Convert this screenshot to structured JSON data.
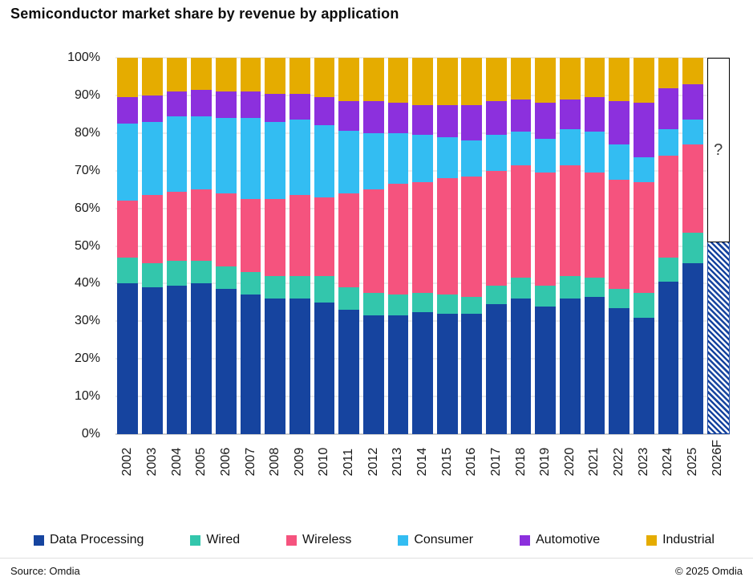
{
  "title": "Semiconductor market share by revenue by application",
  "footer": {
    "source": "Source: Omdia",
    "copyright": "© 2025 Omdia"
  },
  "chart_data": {
    "type": "bar",
    "stacked": true,
    "stack_unit": "percent",
    "title": "Semiconductor market share by revenue by application",
    "grid": "horizontal",
    "legend_position": "bottom",
    "ylim": [
      0,
      100
    ],
    "ytick_labels": [
      "0%",
      "10%",
      "20%",
      "30%",
      "40%",
      "50%",
      "60%",
      "70%",
      "80%",
      "90%",
      "100%"
    ],
    "categories": [
      "2002",
      "2003",
      "2004",
      "2005",
      "2006",
      "2007",
      "2008",
      "2009",
      "2010",
      "2011",
      "2012",
      "2013",
      "2014",
      "2015",
      "2016",
      "2017",
      "2018",
      "2019",
      "2020",
      "2021",
      "2022",
      "2023",
      "2024",
      "2025",
      "2026F"
    ],
    "series": [
      {
        "name": "Data Processing",
        "color": "#16449f",
        "values": [
          40,
          39,
          39.5,
          40,
          38.5,
          37,
          36,
          36,
          35,
          33,
          31.5,
          31.5,
          32.5,
          32,
          32,
          34.5,
          36,
          34,
          36,
          36.5,
          33.5,
          31,
          40.5,
          45.5
        ]
      },
      {
        "name": "Wired",
        "color": "#33c6ac",
        "values": [
          7,
          6.5,
          6.5,
          6,
          6,
          6,
          6,
          6,
          7,
          6,
          6,
          5.5,
          5,
          5,
          4.5,
          5,
          5.5,
          5.5,
          6,
          5,
          5,
          6.5,
          6.5,
          8
        ]
      },
      {
        "name": "Wireless",
        "color": "#f5537e",
        "values": [
          15,
          18,
          18.5,
          19,
          19.5,
          19.5,
          20.5,
          21.5,
          21,
          25,
          27.5,
          29.5,
          29.5,
          31,
          32,
          30.5,
          30,
          30,
          29.5,
          28,
          29,
          29.5,
          27,
          23.5
        ]
      },
      {
        "name": "Consumer",
        "color": "#33bdf2",
        "values": [
          20.5,
          19.5,
          20,
          19.5,
          20,
          21.5,
          20.5,
          20,
          19,
          16.5,
          15,
          13.5,
          12.5,
          11,
          9.5,
          9.5,
          9,
          9,
          9.5,
          11,
          9.5,
          6.5,
          7,
          6.5
        ]
      },
      {
        "name": "Automotive",
        "color": "#8c30dd",
        "values": [
          7,
          7,
          6.5,
          7,
          7,
          7,
          7.5,
          7,
          7.5,
          8,
          8.5,
          8,
          8,
          8.5,
          9.5,
          9,
          8.5,
          9.5,
          8,
          9,
          11.5,
          14.5,
          11,
          9.5
        ]
      },
      {
        "name": "Industrial",
        "color": "#e5ac00",
        "values": [
          10.5,
          10,
          9,
          8.5,
          9,
          9,
          9.5,
          9.5,
          10.5,
          11.5,
          11.5,
          12,
          12.5,
          12.5,
          12.5,
          11.5,
          11,
          12,
          11,
          10.5,
          11.5,
          12,
          8,
          7
        ]
      }
    ],
    "forecast": {
      "category": "2026F",
      "series": "Data Processing",
      "value": 51,
      "placeholder_label": "?",
      "hatch": true
    }
  }
}
